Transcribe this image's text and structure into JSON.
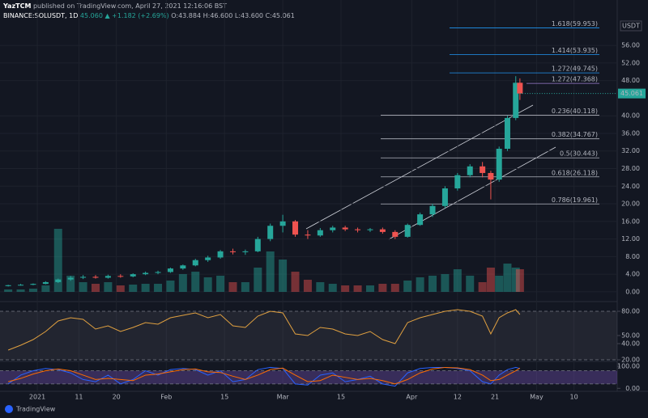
{
  "header": {
    "author": "YazTCM",
    "published": "published on TradingView.com, April 27, 2021 12:16:06 BST",
    "symbol": "BINANCE:SOLUSDT, 1D",
    "last": "45.060",
    "change": "▲ +1.182 (+2.69%)",
    "open": "O:43.884",
    "high": "H:46.600",
    "low": "L:43.600",
    "close": "C:45.061",
    "currency": "USDT",
    "brand": "TradingView"
  },
  "chart_data": [
    {
      "type": "candlestick",
      "up_color": "#26a69a",
      "down_color": "#ef5350",
      "grid": true,
      "xlim": [
        -7,
        140
      ],
      "xticks": [
        {
          "value": 1,
          "label": "2021"
        },
        11,
        20,
        {
          "value": 32,
          "label": "Feb"
        },
        {
          "value": 46,
          "label": "15"
        },
        {
          "value": 60,
          "label": "Mar"
        },
        {
          "value": 74,
          "label": "15"
        },
        {
          "value": 91,
          "label": "Apr"
        },
        {
          "value": 102,
          "label": "12"
        },
        {
          "value": 111,
          "label": "21"
        },
        {
          "value": 121,
          "label": "May"
        },
        {
          "value": 130,
          "label": "10"
        }
      ],
      "ylim": [
        -1.3,
        63
      ],
      "yticks": [
        {
          "value": 0,
          "label": "0.00"
        },
        {
          "value": 4,
          "label": "4.00"
        },
        {
          "value": 8,
          "label": "8.00"
        },
        {
          "value": 12,
          "label": "12.00"
        },
        {
          "value": 16,
          "label": "16.00"
        },
        {
          "value": 20,
          "label": "20.00"
        },
        {
          "value": 24,
          "label": "24.00"
        },
        {
          "value": 28,
          "label": "28.00"
        },
        {
          "value": 32,
          "label": "32.00"
        },
        {
          "value": 36,
          "label": "36.00"
        },
        {
          "value": 40,
          "label": "40.00"
        },
        {
          "value": 48,
          "label": "48.00"
        },
        {
          "value": 52,
          "label": "52.00"
        },
        {
          "value": 56,
          "label": "56.00"
        }
      ],
      "x": [
        -6,
        -3,
        0,
        3,
        6,
        9,
        12,
        15,
        18,
        21,
        24,
        27,
        30,
        33,
        36,
        39,
        42,
        45,
        48,
        51,
        54,
        57,
        60,
        63,
        66,
        69,
        72,
        75,
        78,
        81,
        84,
        87,
        90,
        93,
        96,
        99,
        102,
        105,
        108,
        110,
        112,
        114,
        116,
        117
      ],
      "open": [
        1.3,
        1.5,
        1.6,
        1.8,
        2.2,
        2.8,
        3.2,
        3.4,
        3.2,
        3.6,
        3.5,
        4.0,
        4.3,
        4.5,
        5.3,
        6.0,
        7.2,
        7.8,
        9.2,
        9.0,
        9.2,
        12.0,
        15.0,
        16.0,
        13.0,
        12.8,
        14.0,
        14.6,
        14.2,
        14.0,
        14.2,
        13.6,
        12.5,
        15.2,
        17.6,
        19.5,
        23.5,
        26.5,
        28.5,
        27.0,
        25.5,
        32.5,
        39.5,
        47.5
      ],
      "high": [
        1.6,
        1.8,
        1.9,
        2.4,
        3.0,
        3.6,
        3.8,
        3.8,
        3.9,
        4.0,
        4.2,
        4.6,
        4.8,
        5.5,
        6.2,
        7.5,
        8.2,
        9.5,
        9.8,
        9.6,
        12.5,
        15.5,
        17.5,
        16.3,
        14.0,
        14.5,
        15.0,
        15.0,
        14.6,
        14.5,
        14.6,
        14.0,
        15.5,
        18.0,
        20.0,
        24.0,
        27.0,
        29.0,
        29.5,
        27.5,
        33.0,
        40.0,
        49.0,
        48.5
      ],
      "low": [
        1.2,
        1.4,
        1.5,
        1.7,
        2.0,
        2.5,
        2.9,
        3.0,
        3.0,
        3.2,
        3.3,
        3.8,
        4.0,
        4.3,
        5.0,
        5.8,
        6.8,
        7.5,
        8.5,
        8.4,
        9.0,
        11.5,
        13.5,
        12.5,
        12.0,
        12.5,
        13.5,
        13.8,
        13.5,
        13.6,
        13.2,
        12.0,
        12.3,
        15.0,
        17.0,
        19.0,
        23.0,
        26.0,
        26.0,
        21.0,
        25.0,
        32.0,
        39.0,
        43.6
      ],
      "close": [
        1.5,
        1.6,
        1.8,
        2.2,
        2.8,
        3.2,
        3.4,
        3.2,
        3.6,
        3.5,
        4.0,
        4.3,
        4.5,
        5.3,
        6.0,
        7.2,
        7.8,
        9.2,
        9.0,
        9.2,
        12.0,
        15.0,
        16.0,
        13.0,
        12.8,
        14.0,
        14.6,
        14.2,
        14.0,
        14.2,
        13.6,
        12.5,
        15.2,
        17.6,
        19.5,
        23.5,
        26.5,
        28.5,
        27.0,
        25.5,
        32.5,
        39.5,
        47.5,
        45.061
      ],
      "volume_ylim": [
        0,
        100
      ],
      "volume": [
        3,
        3,
        4,
        8,
        78,
        20,
        12,
        10,
        12,
        8,
        9,
        10,
        10,
        14,
        22,
        25,
        18,
        20,
        12,
        12,
        30,
        50,
        40,
        25,
        15,
        12,
        10,
        8,
        8,
        8,
        10,
        10,
        14,
        18,
        20,
        22,
        28,
        20,
        12,
        30,
        20,
        35,
        30,
        28
      ],
      "last_price": 45.061,
      "retracement_color": "#b2b5be",
      "extension_color": "#2196f3",
      "projection_color": "#9c7fd1",
      "retracement_levels": [
        {
          "value": 40.118,
          "label": "0.236(40.118)"
        },
        {
          "value": 34.767,
          "label": "0.382(34.767)"
        },
        {
          "value": 30.443,
          "label": "0.5(30.443)"
        },
        {
          "value": 26.118,
          "label": "0.618(26.118)"
        },
        {
          "value": 19.961,
          "label": "0.786(19.961)"
        }
      ],
      "extension_levels": [
        {
          "value": 49.745,
          "label": "1.272(49.745)"
        },
        {
          "value": 53.935,
          "label": "1.414(53.935)"
        },
        {
          "value": 59.953,
          "label": "1.618(59.953)"
        }
      ],
      "projection_levels": [
        {
          "value": 47.368,
          "label": "1.272(47.368)"
        }
      ]
    },
    {
      "type": "line",
      "color": "#e0a040",
      "band": [
        20,
        80
      ],
      "ylim": [
        18,
        87
      ],
      "yticks": [
        {
          "value": 80,
          "label": "80.00"
        },
        {
          "value": 50,
          "label": "50.00"
        },
        {
          "value": 40,
          "label": "40.00"
        },
        {
          "value": 20,
          "label": "20.00"
        }
      ],
      "x": [
        -6,
        -3,
        0,
        3,
        6,
        9,
        12,
        15,
        18,
        21,
        24,
        27,
        30,
        33,
        36,
        39,
        42,
        45,
        48,
        51,
        54,
        57,
        60,
        63,
        66,
        69,
        72,
        75,
        78,
        81,
        84,
        87,
        90,
        93,
        96,
        99,
        102,
        105,
        108,
        110,
        112,
        114,
        116,
        117
      ],
      "series": [
        {
          "color": "#e0a040",
          "values": [
            32,
            38,
            45,
            55,
            68,
            72,
            70,
            58,
            62,
            55,
            60,
            66,
            64,
            72,
            75,
            78,
            72,
            76,
            62,
            60,
            74,
            80,
            78,
            52,
            50,
            60,
            58,
            52,
            50,
            55,
            45,
            40,
            66,
            72,
            76,
            80,
            82,
            80,
            74,
            52,
            72,
            78,
            82,
            76
          ]
        }
      ]
    },
    {
      "type": "line",
      "band": [
        20,
        80
      ],
      "ylim": [
        -10,
        115
      ],
      "yticks": [
        {
          "value": 100,
          "label": "100.00"
        },
        {
          "value": 0,
          "label": "0.00"
        }
      ],
      "x": [
        -6,
        -3,
        0,
        3,
        6,
        9,
        12,
        15,
        18,
        21,
        24,
        27,
        30,
        33,
        36,
        39,
        42,
        45,
        48,
        51,
        54,
        57,
        60,
        63,
        66,
        69,
        72,
        75,
        78,
        81,
        84,
        87,
        90,
        93,
        96,
        99,
        102,
        105,
        108,
        110,
        112,
        114,
        116,
        117
      ],
      "series": [
        {
          "color": "#2962ff",
          "values": [
            20,
            60,
            80,
            90,
            85,
            70,
            40,
            30,
            60,
            20,
            40,
            80,
            60,
            85,
            90,
            85,
            60,
            80,
            30,
            40,
            85,
            95,
            90,
            20,
            15,
            60,
            70,
            30,
            40,
            55,
            20,
            10,
            70,
            90,
            95,
            95,
            90,
            80,
            30,
            20,
            60,
            85,
            95,
            90
          ]
        },
        {
          "color": "#ff6d00",
          "values": [
            30,
            45,
            65,
            80,
            88,
            80,
            60,
            40,
            45,
            40,
            35,
            60,
            65,
            75,
            85,
            88,
            75,
            72,
            55,
            40,
            60,
            85,
            92,
            60,
            30,
            35,
            60,
            50,
            40,
            45,
            35,
            20,
            40,
            70,
            88,
            95,
            93,
            85,
            60,
            35,
            40,
            60,
            80,
            92
          ]
        }
      ]
    }
  ]
}
